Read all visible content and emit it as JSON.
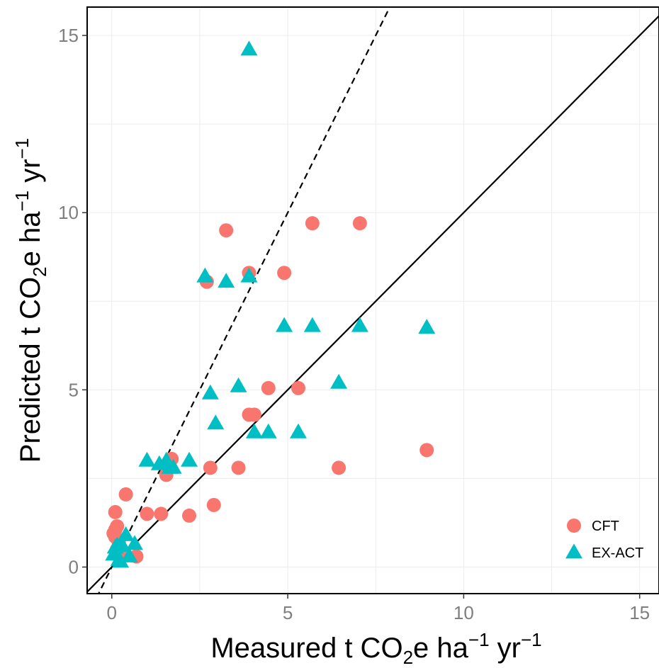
{
  "chart_data": {
    "type": "scatter",
    "xlim": [
      -0.7,
      15.55
    ],
    "ylim": [
      -0.75,
      15.8
    ],
    "x_ticks": [
      0,
      5,
      10,
      15
    ],
    "y_ticks": [
      0,
      5,
      10,
      15
    ],
    "x_tick_labels": [
      "0",
      "5",
      "10",
      "15"
    ],
    "y_tick_labels": [
      "0",
      "5",
      "10",
      "15"
    ],
    "xlabel": {
      "prefix": "Measured t CO",
      "sub": "2",
      "mid": "e ha",
      "sup1": "−1",
      "mid2": " yr",
      "sup2": "−1"
    },
    "ylabel": {
      "prefix": "Predicted t CO",
      "sub": "2",
      "mid": "e ha",
      "sup1": "−1",
      "mid2": " yr",
      "sup2": "−1"
    },
    "grid": true,
    "legend_position": "bottom-right",
    "reference_lines": [
      {
        "style": "solid",
        "slope": 1,
        "intercept": 0
      },
      {
        "style": "dashed",
        "slope": 2,
        "intercept": 0
      }
    ],
    "series": [
      {
        "name": "CFT",
        "marker": "circle",
        "color": "#F8766D",
        "points": [
          [
            0.1,
            1.55
          ],
          [
            0.1,
            1.05
          ],
          [
            0.15,
            1.15
          ],
          [
            0.05,
            0.95
          ],
          [
            0.1,
            0.85
          ],
          [
            0.2,
            0.7
          ],
          [
            0.15,
            0.5
          ],
          [
            0.3,
            0.45
          ],
          [
            0.4,
            2.05
          ],
          [
            0.7,
            0.3
          ],
          [
            1.0,
            1.5
          ],
          [
            1.4,
            1.5
          ],
          [
            1.55,
            2.6
          ],
          [
            1.7,
            3.05
          ],
          [
            2.2,
            1.45
          ],
          [
            2.7,
            8.05
          ],
          [
            2.8,
            2.8
          ],
          [
            2.9,
            1.75
          ],
          [
            3.25,
            9.5
          ],
          [
            3.6,
            2.8
          ],
          [
            3.9,
            8.3
          ],
          [
            3.9,
            4.3
          ],
          [
            4.05,
            4.3
          ],
          [
            4.45,
            5.05
          ],
          [
            4.9,
            8.3
          ],
          [
            5.3,
            5.05
          ],
          [
            5.7,
            9.7
          ],
          [
            6.45,
            2.8
          ],
          [
            7.05,
            9.7
          ],
          [
            8.95,
            3.3
          ]
        ]
      },
      {
        "name": "EX-ACT",
        "marker": "triangle",
        "color": "#00BFC4",
        "points": [
          [
            0.05,
            0.35
          ],
          [
            0.1,
            0.55
          ],
          [
            0.15,
            0.6
          ],
          [
            0.2,
            0.2
          ],
          [
            0.25,
            0.15
          ],
          [
            0.3,
            0.6
          ],
          [
            0.4,
            0.9
          ],
          [
            0.5,
            0.3
          ],
          [
            0.65,
            0.65
          ],
          [
            1.0,
            3.0
          ],
          [
            1.35,
            2.9
          ],
          [
            1.55,
            3.0
          ],
          [
            1.65,
            2.8
          ],
          [
            1.75,
            2.8
          ],
          [
            2.2,
            3.0
          ],
          [
            2.65,
            8.2
          ],
          [
            2.8,
            4.9
          ],
          [
            2.95,
            4.05
          ],
          [
            3.25,
            8.05
          ],
          [
            3.6,
            5.1
          ],
          [
            3.9,
            14.6
          ],
          [
            3.9,
            8.2
          ],
          [
            4.05,
            3.8
          ],
          [
            4.45,
            3.8
          ],
          [
            4.9,
            6.8
          ],
          [
            5.3,
            3.8
          ],
          [
            5.7,
            6.8
          ],
          [
            6.45,
            5.2
          ],
          [
            7.05,
            6.8
          ],
          [
            8.95,
            6.75
          ]
        ]
      }
    ]
  }
}
